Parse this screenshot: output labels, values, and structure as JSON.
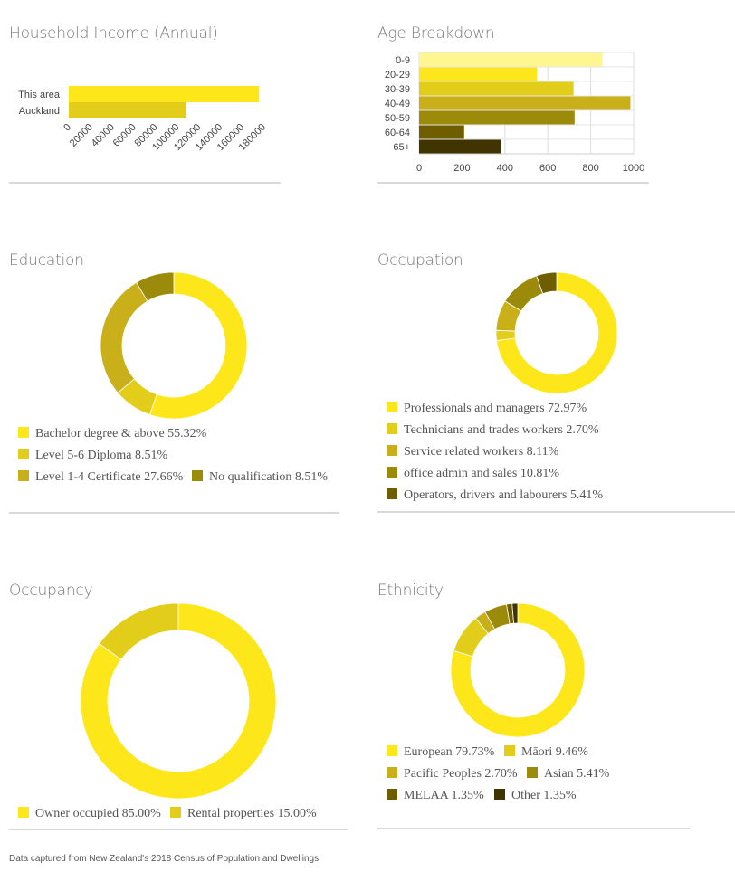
{
  "footer": "Data captured from New Zealand's 2018 Census of Population and Dwellings.",
  "chart_data": [
    {
      "id": "income",
      "type": "bar",
      "orientation": "horizontal",
      "title": "Household Income (Annual)",
      "categories": [
        "This area",
        "Auckland"
      ],
      "values": [
        176000,
        108000
      ],
      "colors": [
        "#fde71a",
        "#e3cd1b"
      ],
      "xlim": [
        0,
        180000
      ],
      "xticks": [
        "0",
        "20000",
        "40000",
        "60000",
        "80000",
        "100000",
        "120000",
        "140000",
        "160000",
        "180000"
      ],
      "grid": false
    },
    {
      "id": "age",
      "type": "bar",
      "orientation": "horizontal",
      "title": "Age Breakdown",
      "categories": [
        "0-9",
        "20-29",
        "30-39",
        "40-49",
        "50-59",
        "60-64",
        "65+"
      ],
      "values": [
        855,
        550,
        720,
        985,
        725,
        210,
        380
      ],
      "colors": [
        "#fff591",
        "#fde71a",
        "#e3cd1b",
        "#c9b01a",
        "#9c8a0a",
        "#6e5e00",
        "#403400"
      ],
      "xlim": [
        0,
        1000
      ],
      "xticks": [
        "0",
        "200",
        "400",
        "600",
        "800",
        "1000"
      ],
      "grid": true
    },
    {
      "id": "education",
      "type": "pie",
      "donut": true,
      "title": "Education",
      "slices": [
        {
          "label": "Bachelor degree & above",
          "value": "55.32%",
          "pct": 55.32,
          "color": "#fde71a"
        },
        {
          "label": "Level 5-6 Diploma",
          "value": "8.51%",
          "pct": 8.51,
          "color": "#e3cd1b"
        },
        {
          "label": "Level 1-4 Certificate",
          "value": "27.66%",
          "pct": 27.66,
          "color": "#c9b01a"
        },
        {
          "label": "No qualification",
          "value": "8.51%",
          "pct": 8.51,
          "color": "#9c8a0a"
        }
      ]
    },
    {
      "id": "occupation",
      "type": "pie",
      "donut": true,
      "title": "Occupation",
      "slices": [
        {
          "label": "Professionals and managers",
          "value": "72.97%",
          "pct": 72.97,
          "color": "#fde71a"
        },
        {
          "label": "Technicians and trades workers",
          "value": "2.70%",
          "pct": 2.7,
          "color": "#e3cd1b"
        },
        {
          "label": "Service related workers",
          "value": "8.11%",
          "pct": 8.11,
          "color": "#c9b01a"
        },
        {
          "label": "office admin and sales",
          "value": "10.81%",
          "pct": 10.81,
          "color": "#9c8a0a"
        },
        {
          "label": "Operators, drivers and labourers",
          "value": "5.41%",
          "pct": 5.41,
          "color": "#6e5e00"
        }
      ]
    },
    {
      "id": "occupancy",
      "type": "pie",
      "donut": true,
      "title": "Occupancy",
      "slices": [
        {
          "label": "Owner occupied",
          "value": "85.00%",
          "pct": 85.0,
          "color": "#fde71a"
        },
        {
          "label": "Rental properties",
          "value": "15.00%",
          "pct": 15.0,
          "color": "#e3cd1b"
        }
      ]
    },
    {
      "id": "ethnicity",
      "type": "pie",
      "donut": true,
      "title": "Ethnicity",
      "slices": [
        {
          "label": "European",
          "value": "79.73%",
          "pct": 79.73,
          "color": "#fde71a"
        },
        {
          "label": "Māori",
          "value": "9.46%",
          "pct": 9.46,
          "color": "#e3cd1b"
        },
        {
          "label": "Pacific Peoples",
          "value": "2.70%",
          "pct": 2.7,
          "color": "#c9b01a"
        },
        {
          "label": "Asian",
          "value": "5.41%",
          "pct": 5.41,
          "color": "#9c8a0a"
        },
        {
          "label": "MELAA",
          "value": "1.35%",
          "pct": 1.35,
          "color": "#6e5e00"
        },
        {
          "label": "Other",
          "value": "1.35%",
          "pct": 1.35,
          "color": "#403400"
        }
      ]
    }
  ]
}
